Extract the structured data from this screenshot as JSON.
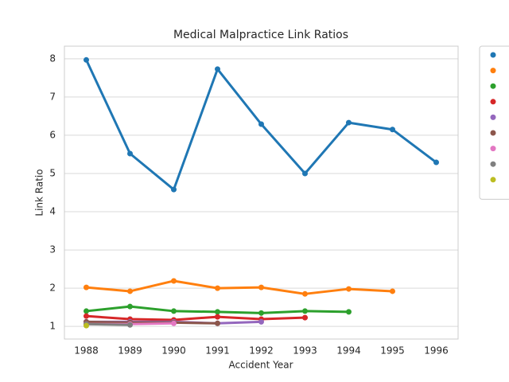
{
  "chart_data": {
    "type": "line",
    "title": "Medical Malpractice Link Ratios",
    "xlabel": "Accident Year",
    "ylabel": "Link Ratio",
    "categories": [
      "1988",
      "1989",
      "1990",
      "1991",
      "1992",
      "1993",
      "1994",
      "1995",
      "1996"
    ],
    "ylim": [
      0.67,
      8.33
    ],
    "yticks": [
      1,
      2,
      3,
      4,
      5,
      6,
      7,
      8
    ],
    "grid": true,
    "legend": "outside-upper-right",
    "series": [
      {
        "color": "#1f77b4",
        "values": [
          7.97,
          5.52,
          4.58,
          7.73,
          6.29,
          5.0,
          6.33,
          6.15,
          5.29
        ]
      },
      {
        "color": "#ff7f0e",
        "values": [
          2.02,
          1.92,
          2.19,
          2.0,
          2.02,
          1.85,
          1.98,
          1.92,
          null
        ]
      },
      {
        "color": "#2ca02c",
        "values": [
          1.4,
          1.52,
          1.4,
          1.38,
          1.35,
          1.4,
          1.38,
          null,
          null
        ]
      },
      {
        "color": "#d62728",
        "values": [
          1.27,
          1.19,
          1.17,
          1.25,
          1.19,
          1.23,
          null,
          null,
          null
        ]
      },
      {
        "color": "#9467bd",
        "values": [
          1.12,
          1.12,
          1.12,
          1.08,
          1.12,
          null,
          null,
          null,
          null
        ]
      },
      {
        "color": "#8c564b",
        "values": [
          1.12,
          1.1,
          1.1,
          1.08,
          null,
          null,
          null,
          null,
          null
        ]
      },
      {
        "color": "#e377c2",
        "values": [
          1.06,
          1.06,
          1.08,
          null,
          null,
          null,
          null,
          null,
          null
        ]
      },
      {
        "color": "#7f7f7f",
        "values": [
          1.06,
          1.04,
          null,
          null,
          null,
          null,
          null,
          null,
          null
        ]
      },
      {
        "color": "#bcbd22",
        "values": [
          1.02,
          null,
          null,
          null,
          null,
          null,
          null,
          null,
          null
        ]
      }
    ]
  }
}
